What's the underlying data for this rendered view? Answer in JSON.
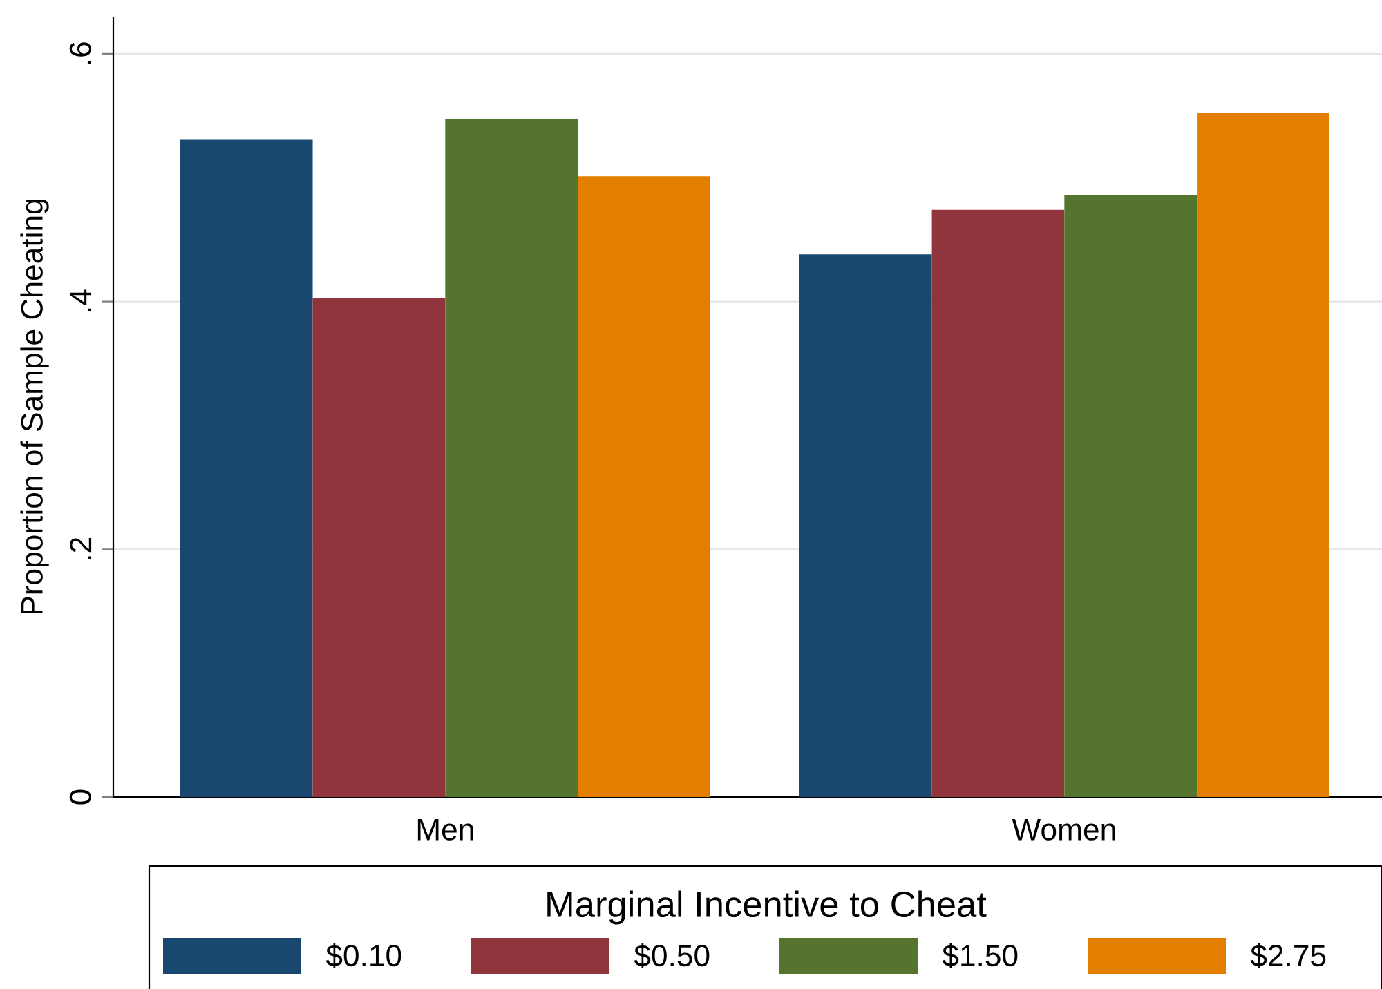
{
  "chart_data": {
    "type": "bar",
    "ylabel": "Proportion of Sample Cheating",
    "legend_title": "Marginal Incentive to Cheat",
    "categories": [
      "Men",
      "Women"
    ],
    "series": [
      {
        "name": "$0.10",
        "color": "#1a476f",
        "values": [
          0.531,
          0.438
        ]
      },
      {
        "name": "$0.50",
        "color": "#90353b",
        "values": [
          0.403,
          0.474
        ]
      },
      {
        "name": "$1.50",
        "color": "#55752f",
        "values": [
          0.547,
          0.486
        ]
      },
      {
        "name": "$2.75",
        "color": "#e37e00",
        "values": [
          0.501,
          0.552
        ]
      }
    ],
    "ylim": [
      0,
      0.63
    ],
    "yticks": [
      0,
      {
        "value": 0.2,
        "label": ".2"
      },
      {
        "value": 0.4,
        "label": ".4"
      },
      {
        "value": 0.6,
        "label": ".6"
      }
    ],
    "grid": "y",
    "legend": "bottom"
  }
}
